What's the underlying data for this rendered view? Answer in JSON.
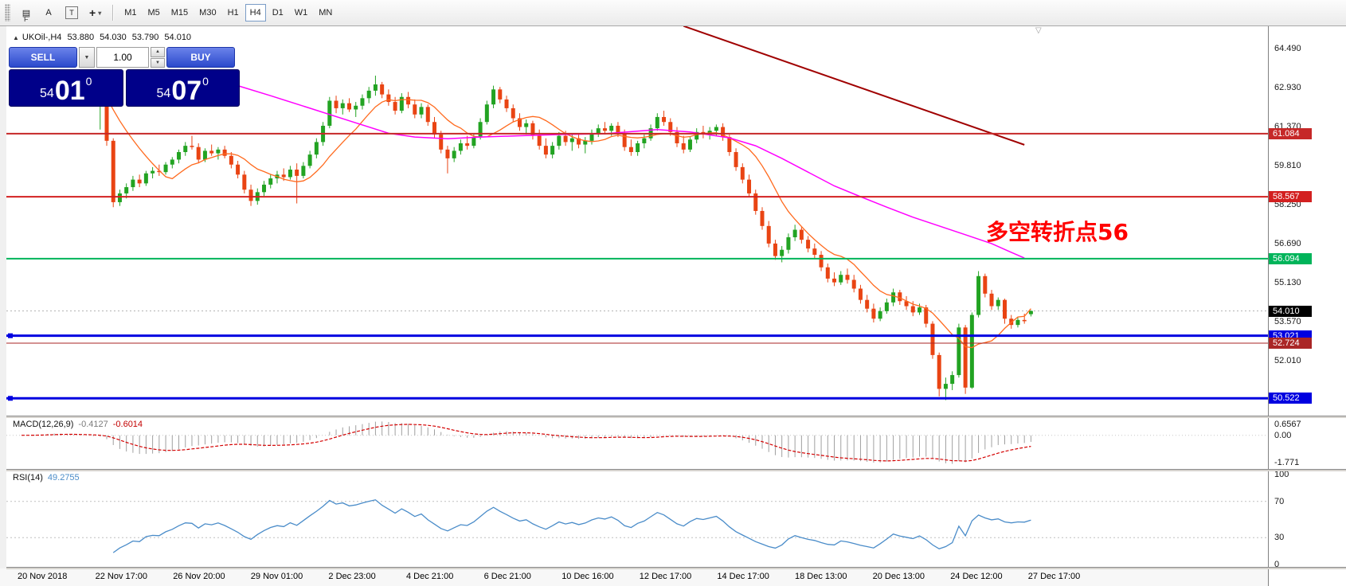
{
  "toolbar": {
    "f_badge": "F",
    "tools": [
      {
        "name": "charts-list",
        "glyph": "▤"
      },
      {
        "name": "text-annotation",
        "glyph": "A"
      },
      {
        "name": "text-label",
        "glyph": "T"
      },
      {
        "name": "crosshair",
        "glyph": "+"
      }
    ],
    "crosshair_dropdown_glyph": "▾",
    "timeframes": [
      "M1",
      "M5",
      "M15",
      "M30",
      "H1",
      "H4",
      "D1",
      "W1",
      "MN"
    ],
    "active_timeframe": "H4"
  },
  "chart": {
    "symbol_arrow": "▲",
    "symbol_label": "UKOil-,H4",
    "ohlc": {
      "open": "53.880",
      "high": "54.030",
      "low": "53.790",
      "close": "54.010"
    },
    "trade_panel": {
      "sell_label": "SELL",
      "buy_label": "BUY",
      "volume": "1.00",
      "spinner_up": "▲",
      "spinner_down": "▼",
      "sell_price": {
        "main": "54",
        "big": "01",
        "pip": "0"
      },
      "buy_price": {
        "main": "54",
        "big": "07",
        "pip": "0"
      }
    },
    "annotation": {
      "text": "多空转折点56",
      "color": "#ff0000"
    },
    "shift_marker": "▽",
    "bid": {
      "price": 54.01,
      "label": "54.010",
      "color": "#000000"
    },
    "levels": [
      {
        "price": 61.084,
        "label": "61.084",
        "color": "#c62828",
        "width": 2,
        "handles": false
      },
      {
        "price": 58.567,
        "label": "58.567",
        "color": "#d32020",
        "width": 2,
        "handles": false
      },
      {
        "price": 56.094,
        "label": "56.094",
        "color": "#00b45a",
        "width": 2,
        "handles": false
      },
      {
        "price": 53.021,
        "label": "53.021",
        "color": "#0000e0",
        "width": 3,
        "handles": true
      },
      {
        "price": 52.724,
        "label": "52.724",
        "color": "#aa2626",
        "width": 1,
        "handles": false
      },
      {
        "price": 50.522,
        "label": "50.522",
        "color": "#0000e0",
        "width": 3,
        "handles": true
      }
    ],
    "y_ticks": [
      "64.490",
      "62.930",
      "61.370",
      "59.810",
      "58.250",
      "56.690",
      "55.130",
      "53.570",
      "52.010"
    ],
    "trendline": {
      "from_idx": 101,
      "from_price": 65.38,
      "to_idx": 153,
      "to_price": 60.64,
      "color": "#a00000"
    }
  },
  "macd": {
    "label": "MACD(12,26,9)",
    "value_main": "-0.4127",
    "value_signal": "-0.6014",
    "scale_top": "0.6567",
    "scale_zero": "0.00",
    "scale_bottom": "-1.771",
    "params": {
      "fast": 12,
      "slow": 26,
      "signal": 9
    }
  },
  "rsi": {
    "label": "RSI(14)",
    "value": "49.2755",
    "scale": [
      "100",
      "70",
      "30",
      "0"
    ],
    "period": 14,
    "levels": [
      70,
      30
    ]
  },
  "chart_data": {
    "type": "candlestick",
    "symbol": "UKOil-",
    "timeframe": "H4",
    "ylim": [
      50.4,
      65.4
    ],
    "colors": {
      "up": "#22a322",
      "down": "#e94413",
      "ma_fast": "#ff6a1e",
      "ma_slow": "#ff00ff",
      "macd_hist": "#a0a0a0",
      "macd_signal": "#d40000",
      "rsi_line": "#4a8cc9"
    },
    "x_labels": [
      "20 Nov 2018",
      "22 Nov 17:00",
      "26 Nov 20:00",
      "29 Nov 01:00",
      "2 Dec 23:00",
      "4 Dec 21:00",
      "6 Dec 21:00",
      "10 Dec 16:00",
      "12 Dec 17:00",
      "14 Dec 17:00",
      "18 Dec 13:00",
      "20 Dec 13:00",
      "24 Dec 12:00",
      "27 Dec 17:00"
    ],
    "ma_fast_period": 10,
    "ma_slow_magenta": [
      [
        33,
        63.0
      ],
      [
        38,
        62.6
      ],
      [
        44,
        62.1
      ],
      [
        50,
        61.6
      ],
      [
        56,
        61.1
      ],
      [
        60,
        60.95
      ],
      [
        65,
        60.88
      ],
      [
        70,
        60.95
      ],
      [
        76,
        61.0
      ],
      [
        82,
        61.05
      ],
      [
        89,
        61.08
      ],
      [
        97,
        61.25
      ],
      [
        102,
        61.15
      ],
      [
        108,
        60.92
      ],
      [
        112,
        60.6
      ],
      [
        116,
        60.1
      ],
      [
        120,
        59.55
      ],
      [
        124,
        59.0
      ],
      [
        128,
        58.57
      ],
      [
        132,
        58.15
      ],
      [
        136,
        57.75
      ],
      [
        140,
        57.4
      ],
      [
        144,
        57.05
      ],
      [
        148,
        56.7
      ],
      [
        151,
        56.35
      ],
      [
        153,
        56.12
      ]
    ],
    "candles": [
      [
        62.55,
        62.8,
        62.35,
        62.7
      ],
      [
        62.7,
        62.95,
        62.55,
        62.85
      ],
      [
        62.85,
        63.0,
        62.6,
        62.75
      ],
      [
        62.75,
        63.15,
        62.65,
        63.05
      ],
      [
        63.05,
        63.35,
        62.9,
        63.25
      ],
      [
        63.25,
        63.5,
        63.05,
        63.15
      ],
      [
        63.15,
        63.3,
        62.85,
        62.95
      ],
      [
        62.95,
        63.1,
        62.65,
        62.8
      ],
      [
        62.8,
        62.9,
        62.45,
        62.55
      ],
      [
        62.55,
        62.75,
        62.35,
        62.65
      ],
      [
        62.65,
        62.8,
        62.4,
        62.5
      ],
      [
        62.5,
        62.6,
        62.2,
        62.3
      ],
      [
        62.3,
        62.7,
        61.25,
        62.35
      ],
      [
        62.35,
        62.4,
        60.6,
        60.8
      ],
      [
        60.8,
        60.9,
        58.15,
        58.35
      ],
      [
        58.35,
        58.85,
        58.2,
        58.7
      ],
      [
        58.7,
        59.1,
        58.5,
        58.95
      ],
      [
        58.95,
        59.4,
        58.8,
        59.25
      ],
      [
        59.25,
        59.45,
        58.95,
        59.1
      ],
      [
        59.1,
        59.6,
        59.0,
        59.5
      ],
      [
        59.5,
        59.75,
        59.3,
        59.6
      ],
      [
        59.6,
        59.85,
        59.4,
        59.55
      ],
      [
        59.55,
        59.95,
        59.45,
        59.85
      ],
      [
        59.85,
        60.15,
        59.7,
        60.05
      ],
      [
        60.05,
        60.45,
        59.9,
        60.35
      ],
      [
        60.35,
        60.75,
        60.2,
        60.6
      ],
      [
        60.6,
        61.0,
        60.45,
        60.55
      ],
      [
        60.55,
        60.7,
        59.9,
        60.05
      ],
      [
        60.05,
        60.5,
        59.95,
        60.4
      ],
      [
        60.4,
        60.65,
        60.2,
        60.3
      ],
      [
        60.3,
        60.55,
        60.05,
        60.45
      ],
      [
        60.45,
        60.6,
        60.1,
        60.2
      ],
      [
        60.2,
        60.35,
        59.7,
        59.85
      ],
      [
        59.85,
        60.0,
        59.3,
        59.45
      ],
      [
        59.45,
        59.6,
        58.7,
        58.85
      ],
      [
        58.85,
        59.05,
        58.2,
        58.4
      ],
      [
        58.4,
        58.9,
        58.25,
        58.75
      ],
      [
        58.75,
        59.2,
        58.6,
        59.05
      ],
      [
        59.05,
        59.45,
        58.9,
        59.3
      ],
      [
        59.3,
        59.6,
        59.1,
        59.45
      ],
      [
        59.45,
        59.7,
        59.2,
        59.35
      ],
      [
        59.35,
        59.8,
        59.25,
        59.65
      ],
      [
        59.65,
        59.9,
        58.3,
        59.4
      ],
      [
        59.4,
        59.95,
        59.3,
        59.8
      ],
      [
        59.8,
        60.4,
        59.7,
        60.25
      ],
      [
        60.25,
        60.9,
        60.1,
        60.75
      ],
      [
        60.75,
        61.55,
        60.6,
        61.4
      ],
      [
        61.4,
        62.55,
        61.3,
        62.4
      ],
      [
        62.4,
        62.6,
        61.9,
        62.1
      ],
      [
        62.1,
        62.45,
        61.85,
        62.3
      ],
      [
        62.3,
        62.5,
        61.95,
        62.05
      ],
      [
        62.05,
        62.35,
        61.75,
        62.2
      ],
      [
        62.2,
        62.65,
        62.05,
        62.5
      ],
      [
        62.5,
        62.95,
        62.3,
        62.8
      ],
      [
        62.8,
        63.4,
        62.6,
        63.05
      ],
      [
        63.05,
        63.15,
        62.5,
        62.65
      ],
      [
        62.65,
        62.85,
        62.2,
        62.35
      ],
      [
        62.35,
        62.55,
        61.85,
        62.0
      ],
      [
        62.0,
        62.7,
        61.9,
        62.55
      ],
      [
        62.55,
        62.75,
        62.1,
        62.25
      ],
      [
        62.25,
        62.45,
        61.7,
        61.85
      ],
      [
        61.85,
        62.3,
        61.7,
        62.15
      ],
      [
        62.15,
        62.25,
        61.4,
        61.55
      ],
      [
        61.55,
        61.75,
        60.9,
        61.05
      ],
      [
        61.05,
        61.2,
        60.3,
        60.45
      ],
      [
        60.45,
        60.6,
        59.5,
        60.1
      ],
      [
        60.1,
        60.55,
        59.95,
        60.4
      ],
      [
        60.4,
        60.85,
        60.25,
        60.7
      ],
      [
        60.7,
        61.0,
        60.45,
        60.6
      ],
      [
        60.6,
        61.1,
        60.5,
        60.95
      ],
      [
        60.95,
        61.7,
        60.85,
        61.55
      ],
      [
        61.55,
        62.4,
        61.45,
        62.25
      ],
      [
        62.25,
        63.0,
        62.1,
        62.85
      ],
      [
        62.85,
        62.95,
        62.3,
        62.45
      ],
      [
        62.45,
        62.6,
        61.95,
        62.1
      ],
      [
        62.1,
        62.25,
        61.55,
        61.7
      ],
      [
        61.7,
        61.9,
        61.2,
        61.35
      ],
      [
        61.35,
        61.65,
        61.05,
        61.5
      ],
      [
        61.5,
        61.6,
        60.85,
        61.0
      ],
      [
        61.0,
        61.25,
        60.45,
        60.6
      ],
      [
        60.6,
        60.9,
        60.1,
        60.25
      ],
      [
        60.25,
        60.75,
        60.1,
        60.6
      ],
      [
        60.6,
        61.15,
        60.45,
        61.0
      ],
      [
        61.0,
        61.2,
        60.6,
        60.75
      ],
      [
        60.75,
        61.05,
        60.4,
        60.9
      ],
      [
        60.9,
        61.1,
        60.5,
        60.65
      ],
      [
        60.65,
        60.95,
        60.3,
        60.8
      ],
      [
        60.8,
        61.25,
        60.65,
        61.1
      ],
      [
        61.1,
        61.45,
        60.95,
        61.3
      ],
      [
        61.3,
        61.55,
        61.05,
        61.2
      ],
      [
        61.2,
        61.5,
        61.0,
        61.4
      ],
      [
        61.4,
        61.55,
        60.95,
        61.1
      ],
      [
        61.1,
        61.25,
        60.4,
        60.55
      ],
      [
        60.55,
        60.85,
        60.2,
        60.35
      ],
      [
        60.35,
        60.8,
        60.2,
        60.7
      ],
      [
        60.7,
        61.05,
        60.5,
        60.9
      ],
      [
        60.9,
        61.45,
        60.8,
        61.3
      ],
      [
        61.3,
        61.9,
        61.2,
        61.75
      ],
      [
        61.75,
        62.0,
        61.4,
        61.55
      ],
      [
        61.55,
        61.7,
        61.0,
        61.15
      ],
      [
        61.15,
        61.35,
        60.55,
        60.7
      ],
      [
        60.7,
        61.0,
        60.3,
        60.45
      ],
      [
        60.45,
        60.95,
        60.35,
        60.85
      ],
      [
        60.85,
        61.3,
        60.7,
        61.15
      ],
      [
        61.15,
        61.4,
        60.9,
        61.05
      ],
      [
        61.05,
        61.35,
        60.85,
        61.2
      ],
      [
        61.2,
        61.45,
        61.0,
        61.35
      ],
      [
        61.35,
        61.5,
        60.8,
        60.95
      ],
      [
        60.95,
        61.05,
        60.2,
        60.35
      ],
      [
        60.35,
        60.5,
        59.6,
        59.75
      ],
      [
        59.75,
        59.9,
        59.1,
        59.25
      ],
      [
        59.25,
        59.45,
        58.55,
        58.7
      ],
      [
        58.7,
        58.85,
        57.85,
        58.0
      ],
      [
        58.0,
        58.15,
        57.25,
        57.4
      ],
      [
        57.4,
        57.6,
        56.55,
        56.7
      ],
      [
        56.7,
        56.85,
        56.05,
        56.2
      ],
      [
        56.2,
        56.6,
        55.95,
        56.45
      ],
      [
        56.45,
        57.1,
        56.3,
        56.95
      ],
      [
        56.95,
        57.45,
        56.8,
        57.25
      ],
      [
        57.25,
        57.35,
        56.7,
        56.85
      ],
      [
        56.85,
        57.0,
        56.35,
        56.5
      ],
      [
        56.5,
        56.7,
        56.1,
        56.25
      ],
      [
        56.25,
        56.4,
        55.6,
        55.75
      ],
      [
        55.75,
        55.9,
        55.15,
        55.3
      ],
      [
        55.3,
        55.55,
        55.0,
        55.15
      ],
      [
        55.15,
        55.6,
        55.05,
        55.45
      ],
      [
        55.45,
        55.7,
        55.1,
        55.25
      ],
      [
        55.25,
        55.45,
        54.75,
        54.9
      ],
      [
        54.9,
        55.05,
        54.3,
        54.45
      ],
      [
        54.45,
        54.65,
        53.95,
        54.1
      ],
      [
        54.1,
        54.3,
        53.55,
        53.7
      ],
      [
        53.7,
        54.15,
        53.6,
        54.0
      ],
      [
        54.0,
        54.5,
        53.9,
        54.35
      ],
      [
        54.35,
        54.9,
        54.2,
        54.75
      ],
      [
        54.75,
        54.85,
        54.25,
        54.4
      ],
      [
        54.4,
        54.6,
        54.05,
        54.2
      ],
      [
        54.2,
        54.4,
        53.8,
        53.95
      ],
      [
        53.95,
        54.3,
        53.85,
        54.15
      ],
      [
        54.15,
        54.25,
        53.35,
        53.5
      ],
      [
        53.5,
        53.6,
        52.1,
        52.25
      ],
      [
        52.25,
        52.35,
        50.6,
        50.9
      ],
      [
        50.9,
        51.35,
        50.45,
        51.1
      ],
      [
        51.1,
        51.6,
        50.85,
        51.45
      ],
      [
        51.45,
        53.5,
        51.35,
        53.35
      ],
      [
        53.35,
        53.45,
        50.7,
        50.95
      ],
      [
        50.95,
        53.95,
        50.9,
        53.85
      ],
      [
        53.85,
        55.6,
        53.75,
        55.4
      ],
      [
        55.4,
        55.5,
        54.55,
        54.7
      ],
      [
        54.7,
        54.85,
        54.05,
        54.2
      ],
      [
        54.2,
        54.55,
        54.05,
        54.45
      ],
      [
        54.45,
        54.5,
        53.5,
        53.7
      ],
      [
        53.7,
        53.85,
        53.3,
        53.45
      ],
      [
        53.45,
        53.75,
        53.35,
        53.65
      ],
      [
        53.65,
        53.9,
        53.5,
        53.6
      ],
      [
        53.88,
        54.03,
        53.79,
        54.01
      ]
    ]
  }
}
